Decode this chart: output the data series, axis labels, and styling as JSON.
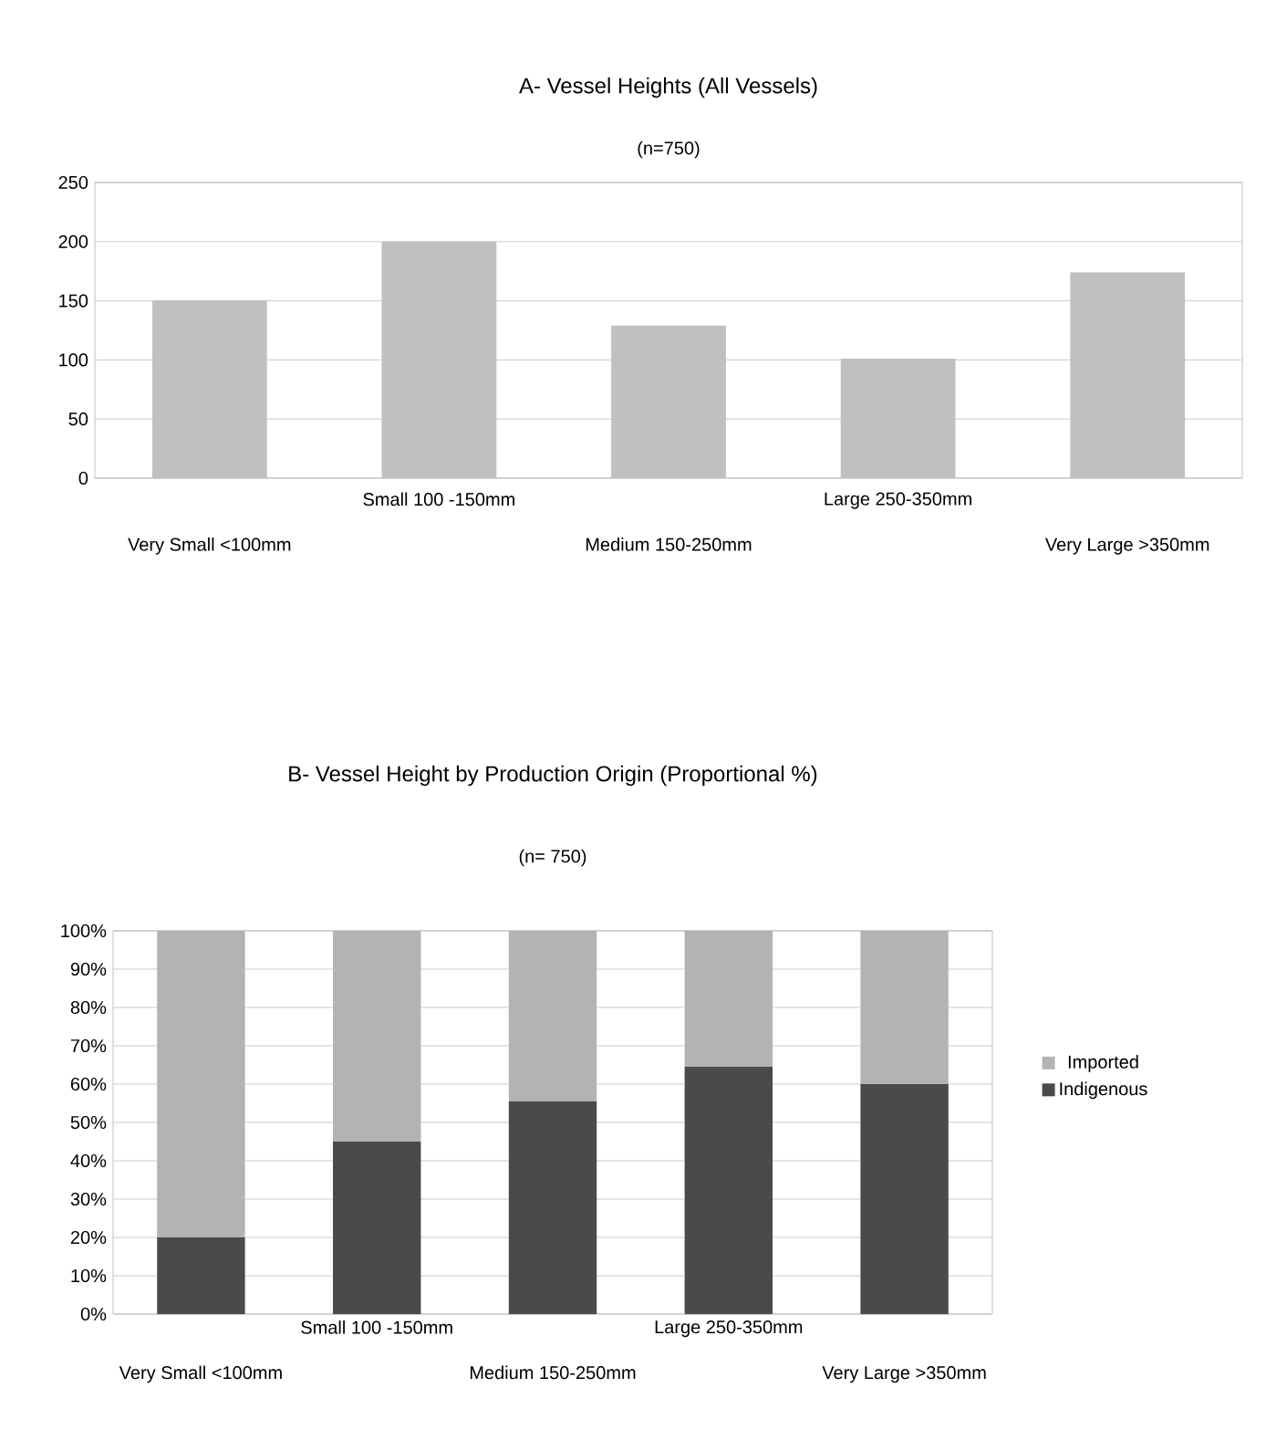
{
  "chart_data": [
    {
      "type": "bar",
      "title": "A- Vessel Heights (All Vessels)",
      "subtitle": "(n=750)",
      "categories": [
        "Very Small <100mm",
        "Small 100 -150mm",
        "Medium 150-250mm",
        "Large 250-350mm",
        "Very Large >350mm"
      ],
      "values": [
        150,
        200,
        129,
        101,
        174
      ],
      "color": "#c0c0c0",
      "ylim": [
        0,
        250
      ],
      "yticks": [
        0,
        50,
        100,
        150,
        200,
        250
      ],
      "grid": "y"
    },
    {
      "type": "bar",
      "title": "B- Vessel Height by Production Origin (Proportional %)",
      "subtitle": "(n= 750)",
      "categories": [
        "Very Small <100mm",
        "Small 100 -150mm",
        "Medium 150-250mm",
        "Large 250-350mm",
        "Very Large >350mm"
      ],
      "stacked": true,
      "series": [
        {
          "name": "Indigenous",
          "color": "#4a4a4a",
          "values": [
            20,
            45,
            55.5,
            64.5,
            60
          ]
        },
        {
          "name": "Imported",
          "color": "#b3b3b3",
          "values": [
            80,
            55,
            44.5,
            35.5,
            40
          ]
        }
      ],
      "ylim": [
        0,
        100
      ],
      "yticks": [
        {
          "value": 0,
          "label": "0%"
        },
        {
          "value": 10,
          "label": "10%"
        },
        {
          "value": 20,
          "label": "20%"
        },
        {
          "value": 30,
          "label": "30%"
        },
        {
          "value": 40,
          "label": "40%"
        },
        {
          "value": 50,
          "label": "50%"
        },
        {
          "value": 60,
          "label": "60%"
        },
        {
          "value": 70,
          "label": "70%"
        },
        {
          "value": 80,
          "label": "80%"
        },
        {
          "value": 90,
          "label": "90%"
        },
        {
          "value": 100,
          "label": "100%"
        }
      ],
      "grid": "y",
      "legend": "right"
    }
  ]
}
